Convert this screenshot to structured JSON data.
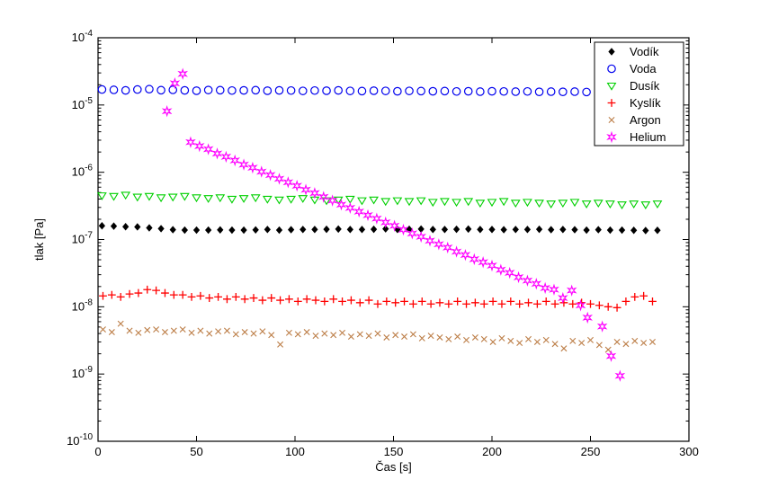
{
  "figure": {
    "background": "#ffffff"
  },
  "chart_data": {
    "type": "scatter",
    "title": "",
    "xlabel": "Čas [s]",
    "ylabel": "tlak [Pa]",
    "xlim": [
      0,
      300
    ],
    "ylim": [
      1e-10,
      0.0001
    ],
    "yscale": "log",
    "xticks": [
      0,
      50,
      100,
      150,
      200,
      250,
      300
    ],
    "ytick_exponents": [
      -4,
      -5,
      -6,
      -7,
      -8,
      -9,
      -10
    ],
    "grid": false,
    "legend": {
      "position": "top-right",
      "border": true
    },
    "series": [
      {
        "id": "vodik",
        "name": "Vodík",
        "marker": "diamond",
        "color": "#000000",
        "t": [
          2,
          8,
          14,
          20,
          26,
          32,
          38,
          44,
          50,
          56,
          62,
          68,
          74,
          80,
          86,
          92,
          98,
          104,
          110,
          116,
          122,
          128,
          134,
          140,
          146,
          152,
          158,
          164,
          170,
          176,
          182,
          188,
          194,
          200,
          206,
          212,
          218,
          224,
          230,
          236,
          242,
          248,
          254,
          260,
          266,
          272,
          278,
          284
        ],
        "v": [
          1.6e-07,
          1.58e-07,
          1.55e-07,
          1.54e-07,
          1.49e-07,
          1.45e-07,
          1.4e-07,
          1.38e-07,
          1.38e-07,
          1.38e-07,
          1.39e-07,
          1.38e-07,
          1.38e-07,
          1.39e-07,
          1.41e-07,
          1.38e-07,
          1.4e-07,
          1.41e-07,
          1.41e-07,
          1.42e-07,
          1.43e-07,
          1.41e-07,
          1.41e-07,
          1.42e-07,
          1.44e-07,
          1.41e-07,
          1.42e-07,
          1.43e-07,
          1.41e-07,
          1.41e-07,
          1.42e-07,
          1.43e-07,
          1.41e-07,
          1.41e-07,
          1.4e-07,
          1.41e-07,
          1.41e-07,
          1.42e-07,
          1.4e-07,
          1.41e-07,
          1.4e-07,
          1.38e-07,
          1.4e-07,
          1.38e-07,
          1.38e-07,
          1.37e-07,
          1.36e-07,
          1.37e-07
        ]
      },
      {
        "id": "voda",
        "name": "Voda",
        "marker": "circle",
        "color": "#0000EE",
        "t": [
          2,
          8,
          14,
          20,
          26,
          32,
          38,
          44,
          50,
          56,
          62,
          68,
          74,
          80,
          86,
          92,
          98,
          104,
          110,
          116,
          122,
          128,
          134,
          140,
          146,
          152,
          158,
          164,
          170,
          176,
          182,
          188,
          194,
          200,
          206,
          212,
          218,
          224,
          230,
          236,
          242,
          248,
          254,
          260,
          266,
          272,
          278,
          284
        ],
        "v": [
          1.7e-05,
          1.68e-05,
          1.65e-05,
          1.7e-05,
          1.72e-05,
          1.66e-05,
          1.68e-05,
          1.65e-05,
          1.63e-05,
          1.67e-05,
          1.66e-05,
          1.64e-05,
          1.65e-05,
          1.66e-05,
          1.63e-05,
          1.65e-05,
          1.64e-05,
          1.62e-05,
          1.64e-05,
          1.63e-05,
          1.65e-05,
          1.62e-05,
          1.61e-05,
          1.63e-05,
          1.62e-05,
          1.6e-05,
          1.62e-05,
          1.61e-05,
          1.6e-05,
          1.61e-05,
          1.59e-05,
          1.6e-05,
          1.58e-05,
          1.6e-05,
          1.59e-05,
          1.58e-05,
          1.59e-05,
          1.57e-05,
          1.58e-05,
          1.57e-05,
          1.58e-05,
          1.56e-05,
          1.57e-05,
          1.56e-05,
          1.55e-05,
          1.56e-05,
          1.55e-05,
          1.54e-05
        ]
      },
      {
        "id": "dusik",
        "name": "Dusík",
        "marker": "triangle-down",
        "color": "#00D000",
        "t": [
          2,
          8,
          14,
          20,
          26,
          32,
          38,
          44,
          50,
          56,
          62,
          68,
          74,
          80,
          86,
          92,
          98,
          104,
          110,
          116,
          122,
          128,
          134,
          140,
          146,
          152,
          158,
          164,
          170,
          176,
          182,
          188,
          194,
          200,
          206,
          212,
          218,
          224,
          230,
          236,
          242,
          248,
          254,
          260,
          266,
          272,
          278,
          284
        ],
        "v": [
          4.5e-07,
          4.4e-07,
          4.6e-07,
          4.3e-07,
          4.4e-07,
          4.2e-07,
          4.3e-07,
          4.4e-07,
          4.2e-07,
          4.1e-07,
          4.2e-07,
          4e-07,
          4.1e-07,
          4.2e-07,
          4e-07,
          3.9e-07,
          4e-07,
          4.1e-07,
          3.9e-07,
          3.8e-07,
          3.9e-07,
          4e-07,
          3.8e-07,
          3.9e-07,
          3.7e-07,
          3.8e-07,
          3.7e-07,
          3.8e-07,
          3.6e-07,
          3.7e-07,
          3.6e-07,
          3.7e-07,
          3.5e-07,
          3.6e-07,
          3.7e-07,
          3.5e-07,
          3.6e-07,
          3.5e-07,
          3.4e-07,
          3.5e-07,
          3.6e-07,
          3.4e-07,
          3.5e-07,
          3.4e-07,
          3.3e-07,
          3.4e-07,
          3.3e-07,
          3.4e-07
        ]
      },
      {
        "id": "kyslik",
        "name": "Kyslík",
        "marker": "plus",
        "color": "#FF0000",
        "t": [
          2.5,
          7,
          11.5,
          16,
          20.5,
          25,
          29.5,
          34,
          38.5,
          43,
          47.5,
          52,
          56.5,
          61,
          65.5,
          70,
          74.5,
          79,
          83.5,
          88,
          92.5,
          97,
          101.5,
          106,
          110.5,
          115,
          119.5,
          124,
          128.5,
          133,
          137.5,
          142,
          146.5,
          151,
          155.5,
          160,
          164.5,
          169,
          173.5,
          178,
          182.5,
          187,
          191.5,
          196,
          200.5,
          205,
          209.5,
          214,
          218.5,
          223,
          227.5,
          232,
          236.5,
          241,
          245.5,
          250,
          254.5,
          259,
          263.5,
          268,
          272.5,
          277,
          281.5
        ],
        "v": [
          1.45e-08,
          1.5e-08,
          1.4e-08,
          1.55e-08,
          1.6e-08,
          1.8e-08,
          1.75e-08,
          1.6e-08,
          1.5e-08,
          1.5e-08,
          1.4e-08,
          1.45e-08,
          1.35e-08,
          1.4e-08,
          1.3e-08,
          1.4e-08,
          1.3e-08,
          1.35e-08,
          1.25e-08,
          1.35e-08,
          1.25e-08,
          1.3e-08,
          1.2e-08,
          1.3e-08,
          1.25e-08,
          1.2e-08,
          1.3e-08,
          1.2e-08,
          1.25e-08,
          1.15e-08,
          1.25e-08,
          1.1e-08,
          1.2e-08,
          1.15e-08,
          1.2e-08,
          1.1e-08,
          1.2e-08,
          1.1e-08,
          1.15e-08,
          1.1e-08,
          1.2e-08,
          1.1e-08,
          1.15e-08,
          1.1e-08,
          1.2e-08,
          1.1e-08,
          1.2e-08,
          1.1e-08,
          1.15e-08,
          1.1e-08,
          1.2e-08,
          1.1e-08,
          1.15e-08,
          1.1e-08,
          1.15e-08,
          1.1e-08,
          1.05e-08,
          1e-08,
          9.7e-09,
          1.2e-08,
          1.4e-08,
          1.45e-08,
          1.2e-08
        ]
      },
      {
        "id": "argon",
        "name": "Argon",
        "marker": "x",
        "color": "#BC7D46",
        "t": [
          2.5,
          7,
          11.5,
          16,
          20.5,
          25,
          29.5,
          34,
          38.5,
          43,
          47.5,
          52,
          56.5,
          61,
          65.5,
          70,
          74.5,
          79,
          83.5,
          88,
          92.5,
          97,
          101.5,
          106,
          110.5,
          115,
          119.5,
          124,
          128.5,
          133,
          137.5,
          142,
          146.5,
          151,
          155.5,
          160,
          164.5,
          169,
          173.5,
          178,
          182.5,
          187,
          191.5,
          196,
          200.5,
          205,
          209.5,
          214,
          218.5,
          223,
          227.5,
          232,
          236.5,
          241,
          245.5,
          250,
          254.5,
          259,
          263.5,
          268,
          272.5,
          277,
          281.5
        ],
        "v": [
          4.6e-09,
          4.2e-09,
          5.6e-09,
          4.4e-09,
          4.1e-09,
          4.5e-09,
          4.6e-09,
          4.2e-09,
          4.4e-09,
          4.6e-09,
          4.1e-09,
          4.4e-09,
          4e-09,
          4.3e-09,
          4.4e-09,
          3.9e-09,
          4.2e-09,
          4e-09,
          4.3e-09,
          3.8e-09,
          2.75e-09,
          4.1e-09,
          3.9e-09,
          4.2e-09,
          3.7e-09,
          4e-09,
          3.8e-09,
          4.1e-09,
          3.6e-09,
          3.9e-09,
          3.7e-09,
          4e-09,
          3.5e-09,
          3.8e-09,
          3.6e-09,
          3.9e-09,
          3.4e-09,
          3.7e-09,
          3.5e-09,
          3.3e-09,
          3.6e-09,
          3.2e-09,
          3.5e-09,
          3.3e-09,
          3e-09,
          3.4e-09,
          3.1e-09,
          2.9e-09,
          3.3e-09,
          3e-09,
          3.2e-09,
          2.8e-09,
          2.4e-09,
          3.1e-09,
          2.9e-09,
          3.2e-09,
          2.7e-09,
          2.3e-09,
          3e-09,
          2.8e-09,
          3.1e-09,
          2.9e-09,
          3e-09
        ]
      },
      {
        "id": "helium",
        "name": "Helium",
        "marker": "hexagram",
        "color": "#FF00FF",
        "t": [
          35,
          39,
          43,
          47,
          51.5,
          56,
          60.5,
          65,
          69.5,
          74,
          78.5,
          83,
          87.5,
          92,
          96.5,
          101,
          105.5,
          110,
          114.5,
          119,
          123.5,
          128,
          132.5,
          137,
          141.5,
          146,
          150.5,
          155,
          159.5,
          164,
          168.5,
          173,
          177.5,
          182,
          186.5,
          191,
          195.5,
          200,
          204.5,
          209,
          213.5,
          218,
          222.5,
          227,
          231.5,
          236,
          240.5,
          245,
          248.5,
          256,
          260.5,
          265
        ],
        "v": [
          8.1e-06,
          2.1e-05,
          2.9e-05,
          2.8e-06,
          2.45e-06,
          2.2e-06,
          1.9e-06,
          1.7e-06,
          1.5e-06,
          1.3e-06,
          1.17e-06,
          1.02e-06,
          9.1e-07,
          8e-07,
          7.1e-07,
          6.3e-07,
          5.5e-07,
          4.9e-07,
          4.3e-07,
          3.8e-07,
          3.3e-07,
          2.95e-07,
          2.6e-07,
          2.3e-07,
          2.05e-07,
          1.8e-07,
          1.6e-07,
          1.4e-07,
          1.23e-07,
          1.1e-07,
          9.6e-08,
          8.5e-08,
          7.6e-08,
          6.6e-08,
          5.9e-08,
          5.1e-08,
          4.6e-08,
          4.1e-08,
          3.55e-08,
          3.2e-08,
          2.75e-08,
          2.45e-08,
          2.2e-08,
          1.9e-08,
          1.8e-08,
          1.35e-08,
          1.75e-08,
          1.05e-08,
          6.9e-09,
          5.1e-09,
          1.85e-09,
          9.4e-10
        ]
      }
    ]
  }
}
